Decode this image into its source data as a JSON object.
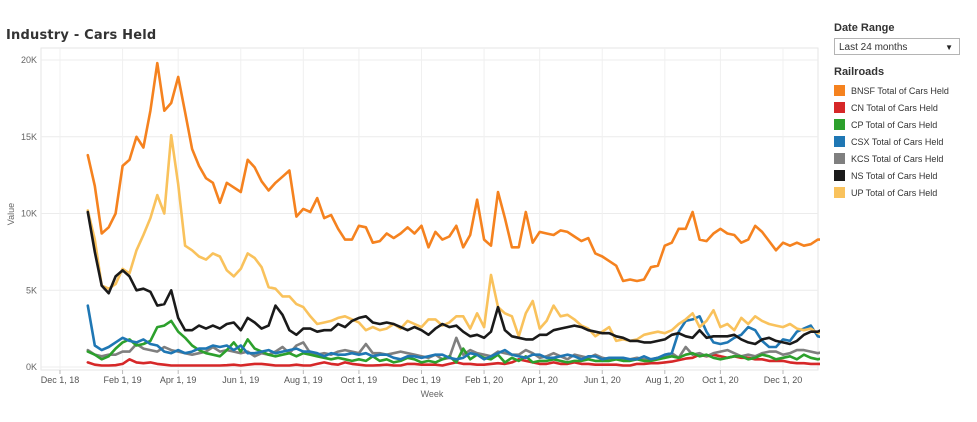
{
  "page": {
    "title": "Industry - Cars Held"
  },
  "filters": {
    "date_range_label": "Date Range",
    "date_range_value": "Last 24 months",
    "railroads_label": "Railroads"
  },
  "colors": {
    "BNSF": "#f5821f",
    "CN": "#d62728",
    "CP": "#2ca02c",
    "CSX": "#1f77b4",
    "KCS": "#7f7f7f",
    "NS": "#1a1a1a",
    "UP": "#f9c25c"
  },
  "chart_data": {
    "type": "line",
    "title": "Industry - Cars Held",
    "xlabel": "Week",
    "ylabel": "Value",
    "ylim": [
      0,
      20500
    ],
    "yticks": [
      0,
      5000,
      10000,
      15000,
      20000
    ],
    "ytick_labels": [
      "0K",
      "5K",
      "10K",
      "15K",
      "20K"
    ],
    "xtick_labels": [
      "Dec 1, 18",
      "Feb 1, 19",
      "Apr 1, 19",
      "Jun 1, 19",
      "Aug 1, 19",
      "Oct 1, 19",
      "Dec 1, 19",
      "Feb 1, 20",
      "Apr 1, 20",
      "Jun 1, 20",
      "Aug 1, 20",
      "Oct 1, 20",
      "Dec 1, 20"
    ],
    "xtick_weeks": [
      0,
      9,
      17,
      26,
      35,
      43,
      52,
      61,
      69,
      78,
      87,
      95,
      104
    ],
    "x_start_week": 4,
    "series": [
      {
        "name": "BNSF Total of Cars Held",
        "key": "BNSF",
        "values": [
          13800,
          11800,
          8700,
          9100,
          10000,
          13100,
          13500,
          15000,
          14300,
          16700,
          19800,
          16700,
          17200,
          18900,
          16600,
          14200,
          13100,
          12300,
          12000,
          10700,
          12000,
          11700,
          11400,
          13500,
          13000,
          12100,
          11500,
          12000,
          12400,
          12800,
          9800,
          10300,
          10100,
          11000,
          9700,
          9900,
          9000,
          8300,
          8300,
          9200,
          9100,
          8100,
          8200,
          8700,
          8400,
          8700,
          9100,
          8700,
          9200,
          7800,
          8800,
          8300,
          8500,
          9200,
          7800,
          8600,
          10900,
          8300,
          7900,
          11400,
          9700,
          7800,
          7800,
          10100,
          8100,
          8800,
          8700,
          8600,
          8900,
          8800,
          8500,
          8200,
          8400,
          7400,
          7200,
          6900,
          6600,
          5600,
          5700,
          5600,
          5700,
          6500,
          6600,
          7900,
          8100,
          9000,
          9000,
          10100,
          8300,
          8200,
          8700,
          9000,
          8700,
          8600,
          8100,
          8300,
          9200,
          8800,
          8200,
          7600,
          8100,
          7900,
          8100,
          7900,
          8000,
          8300,
          8300,
          8300,
          9000
        ]
      },
      {
        "name": "CN Total of Cars Held",
        "key": "CN",
        "values": [
          300,
          150,
          100,
          100,
          120,
          200,
          500,
          300,
          250,
          300,
          200,
          150,
          100,
          100,
          100,
          100,
          100,
          100,
          100,
          100,
          120,
          150,
          100,
          150,
          200,
          200,
          150,
          100,
          100,
          100,
          150,
          100,
          100,
          200,
          300,
          200,
          150,
          300,
          200,
          150,
          100,
          100,
          120,
          150,
          100,
          100,
          200,
          200,
          150,
          150,
          150,
          100,
          200,
          300,
          200,
          200,
          150,
          150,
          200,
          250,
          200,
          300,
          500,
          400,
          300,
          200,
          200,
          300,
          200,
          200,
          300,
          200,
          200,
          150,
          150,
          150,
          150,
          100,
          100,
          200,
          200,
          250,
          250,
          300,
          350,
          450,
          550,
          600,
          800,
          700,
          800,
          700,
          600,
          700,
          600,
          600,
          500,
          500,
          400,
          400,
          400,
          300,
          250,
          250,
          200,
          200,
          200,
          200,
          200
        ]
      },
      {
        "name": "CP Total of Cars Held",
        "key": "CP",
        "values": [
          1000,
          800,
          500,
          700,
          1200,
          1600,
          1800,
          1400,
          1500,
          1700,
          2600,
          2700,
          3000,
          2300,
          1900,
          1400,
          1100,
          900,
          800,
          700,
          1100,
          1600,
          1000,
          1800,
          1200,
          1000,
          800,
          700,
          800,
          900,
          700,
          900,
          800,
          700,
          600,
          500,
          600,
          500,
          400,
          500,
          400,
          700,
          400,
          500,
          300,
          400,
          600,
          500,
          300,
          400,
          300,
          500,
          700,
          300,
          1200,
          500,
          800,
          600,
          500,
          800,
          300,
          600,
          400,
          700,
          300,
          400,
          400,
          500,
          400,
          300,
          400,
          400,
          500,
          400,
          400,
          400,
          500,
          400,
          400,
          500,
          400,
          400,
          500,
          600,
          700,
          600,
          800,
          900,
          700,
          800,
          600,
          500,
          600,
          700,
          700,
          500,
          600,
          800,
          700,
          500,
          600,
          700,
          500,
          800,
          600,
          500,
          600,
          400,
          700
        ]
      },
      {
        "name": "CSX Total of Cars Held",
        "key": "CSX",
        "values": [
          4000,
          1400,
          1100,
          1300,
          1600,
          1900,
          1700,
          1600,
          1800,
          1500,
          1400,
          1000,
          900,
          1100,
          900,
          1000,
          1200,
          1200,
          1400,
          1300,
          1400,
          1100,
          1400,
          900,
          900,
          1000,
          1100,
          900,
          1000,
          1100,
          1200,
          1000,
          1000,
          900,
          700,
          900,
          800,
          800,
          900,
          800,
          900,
          700,
          800,
          800,
          600,
          500,
          700,
          700,
          600,
          700,
          800,
          800,
          600,
          500,
          600,
          900,
          800,
          500,
          700,
          900,
          1100,
          800,
          700,
          600,
          800,
          800,
          600,
          600,
          700,
          800,
          700,
          500,
          700,
          700,
          500,
          600,
          600,
          600,
          500,
          500,
          700,
          500,
          600,
          800,
          900,
          2300,
          3000,
          3100,
          3300,
          2300,
          1600,
          1500,
          1600,
          1900,
          2100,
          2600,
          2400,
          1700,
          1300,
          1300,
          1800,
          1700,
          2300,
          2500,
          2700,
          2000,
          1900,
          3000,
          2400
        ]
      },
      {
        "name": "KCS Total of Cars Held",
        "key": "KCS",
        "values": [
          1100,
          800,
          700,
          800,
          800,
          1000,
          1000,
          1500,
          1200,
          1100,
          1000,
          1300,
          1100,
          1000,
          900,
          800,
          900,
          1000,
          1300,
          1000,
          1100,
          1000,
          900,
          1000,
          700,
          900,
          800,
          1000,
          1300,
          900,
          1400,
          1600,
          900,
          800,
          900,
          800,
          1000,
          1100,
          1000,
          900,
          1500,
          900,
          900,
          800,
          900,
          1000,
          900,
          800,
          700,
          600,
          800,
          500,
          600,
          1900,
          800,
          1100,
          900,
          800,
          700,
          1000,
          900,
          800,
          800,
          1100,
          900,
          600,
          700,
          900,
          700,
          500,
          800,
          700,
          600,
          800,
          600,
          500,
          600,
          500,
          500,
          600,
          500,
          500,
          600,
          700,
          900,
          600,
          1300,
          800,
          900,
          700,
          900,
          1000,
          1100,
          900,
          700,
          800,
          700,
          900,
          1000,
          1000,
          800,
          900,
          1100,
          1100,
          1000,
          900,
          1000,
          1700,
          800
        ]
      },
      {
        "name": "NS Total of Cars Held",
        "key": "NS",
        "values": [
          10100,
          7500,
          5300,
          4800,
          5900,
          6300,
          5900,
          5000,
          5100,
          4900,
          4000,
          4100,
          5000,
          3200,
          2400,
          2400,
          2700,
          2500,
          2700,
          2500,
          2800,
          2900,
          2400,
          3200,
          2900,
          2500,
          2700,
          4000,
          3400,
          2400,
          2100,
          2500,
          2500,
          2300,
          2400,
          2400,
          2800,
          2600,
          3000,
          3200,
          3300,
          2900,
          2800,
          2900,
          2800,
          2600,
          2400,
          2600,
          2400,
          2100,
          2500,
          2800,
          2600,
          2700,
          2300,
          2000,
          2100,
          1900,
          2300,
          3900,
          2400,
          2000,
          1900,
          1800,
          1800,
          2100,
          2100,
          2400,
          2500,
          2600,
          2700,
          2600,
          2400,
          2300,
          2200,
          2200,
          2000,
          1900,
          1700,
          1700,
          1600,
          1600,
          1700,
          1800,
          2100,
          2200,
          2000,
          1900,
          2400,
          1900,
          2000,
          2000,
          2000,
          2100,
          1800,
          1600,
          1500,
          1800,
          1900,
          1700,
          1600,
          1500,
          1700,
          2100,
          2300,
          2300,
          2500,
          3100,
          3400
        ]
      },
      {
        "name": "UP Total of Cars Held",
        "key": "UP",
        "values": [
          10200,
          8300,
          5300,
          5100,
          5400,
          6400,
          6100,
          7600,
          8600,
          9700,
          11200,
          10000,
          15100,
          11900,
          7900,
          7600,
          7200,
          7000,
          7400,
          7200,
          6300,
          5900,
          6400,
          7400,
          7100,
          6500,
          5200,
          5100,
          4600,
          4600,
          4100,
          3900,
          3300,
          2800,
          2900,
          3000,
          3200,
          3300,
          3100,
          2900,
          2400,
          2600,
          2400,
          2500,
          2800,
          2500,
          3000,
          2800,
          2600,
          3100,
          3100,
          2700,
          2900,
          3300,
          3300,
          2500,
          3500,
          2600,
          6000,
          3900,
          3500,
          3300,
          2000,
          3500,
          4300,
          2500,
          3000,
          4000,
          3300,
          3400,
          3100,
          2700,
          2500,
          2000,
          2300,
          2600,
          1700,
          1800,
          1700,
          1800,
          2100,
          2200,
          2300,
          2200,
          2400,
          2800,
          3100,
          3500,
          2600,
          3000,
          3700,
          2600,
          2800,
          2400,
          3200,
          2800,
          3300,
          3000,
          2800,
          2700,
          2600,
          2800,
          2500,
          2400,
          2500,
          2200,
          2300,
          2300,
          2800
        ]
      }
    ]
  }
}
